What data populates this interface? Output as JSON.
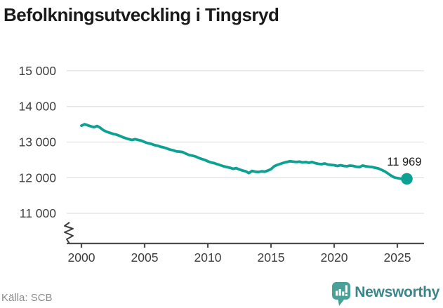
{
  "header": {
    "title": "Befolkningsutveckling i Tingsryd"
  },
  "footer": {
    "source_label": "Källa: SCB",
    "brand_name": "Newsworthy"
  },
  "colors": {
    "line": "#0da193",
    "grid": "#e3e3e3",
    "axis": "#4d4d4d",
    "tick_label": "#3d3d3d",
    "annotation": "#1a1a1a",
    "title": "#1a1a1a",
    "source_text": "#8b8b8b",
    "brand_teal": "#48a098",
    "brand_text_teal": "#3b858a"
  },
  "icons": {
    "brand_logo": "newsworthy-speech-bubble-bar-chart-icon"
  },
  "chart_data": {
    "type": "line",
    "title": "Befolkningsutveckling i Tingsryd",
    "source": "Källa: SCB",
    "grid": "horizontal",
    "legend": "none",
    "axis_break": true,
    "xlim": [
      1999,
      2026.5
    ],
    "ylim": [
      11000,
      15000
    ],
    "x_ticks": [
      2000,
      2005,
      2010,
      2015,
      2020,
      2025
    ],
    "y_tick_values": [
      15000,
      14000,
      13000,
      12000,
      11000
    ],
    "y_ticks": [
      "15 000",
      "14 000",
      "13 000",
      "12 000",
      "11 000"
    ],
    "end_label": "11 969",
    "end_value": 11969,
    "series_name": "Befolkning",
    "x": [
      2000.0,
      2000.25,
      2000.5,
      2000.75,
      2001.0,
      2001.25,
      2001.5,
      2001.75,
      2002.0,
      2002.25,
      2002.5,
      2002.75,
      2003.0,
      2003.25,
      2003.5,
      2003.75,
      2004.0,
      2004.25,
      2004.5,
      2004.75,
      2005.0,
      2005.25,
      2005.5,
      2005.75,
      2006.0,
      2006.25,
      2006.5,
      2006.75,
      2007.0,
      2007.25,
      2007.5,
      2007.75,
      2008.0,
      2008.25,
      2008.5,
      2008.75,
      2009.0,
      2009.25,
      2009.5,
      2009.75,
      2010.0,
      2010.25,
      2010.5,
      2010.75,
      2011.0,
      2011.25,
      2011.5,
      2011.75,
      2012.0,
      2012.25,
      2012.5,
      2012.75,
      2013.0,
      2013.25,
      2013.5,
      2013.75,
      2014.0,
      2014.25,
      2014.5,
      2014.75,
      2015.0,
      2015.25,
      2015.5,
      2015.75,
      2016.0,
      2016.25,
      2016.5,
      2016.75,
      2017.0,
      2017.25,
      2017.5,
      2017.75,
      2018.0,
      2018.25,
      2018.5,
      2018.75,
      2019.0,
      2019.25,
      2019.5,
      2019.75,
      2020.0,
      2020.25,
      2020.5,
      2020.75,
      2021.0,
      2021.25,
      2021.5,
      2021.75,
      2022.0,
      2022.25,
      2022.5,
      2022.75,
      2023.0,
      2023.25,
      2023.5,
      2023.75,
      2024.0,
      2024.25,
      2024.5,
      2024.75,
      2025.0,
      2025.25,
      2025.5,
      2025.75
    ],
    "values": [
      13460,
      13500,
      13470,
      13440,
      13420,
      13450,
      13400,
      13330,
      13290,
      13260,
      13230,
      13210,
      13180,
      13140,
      13110,
      13080,
      13060,
      13080,
      13060,
      13040,
      13000,
      12970,
      12950,
      12920,
      12900,
      12870,
      12850,
      12820,
      12790,
      12770,
      12740,
      12730,
      12720,
      12680,
      12640,
      12620,
      12600,
      12560,
      12530,
      12500,
      12460,
      12430,
      12410,
      12380,
      12350,
      12320,
      12300,
      12280,
      12250,
      12270,
      12230,
      12200,
      12180,
      12130,
      12190,
      12170,
      12160,
      12180,
      12170,
      12200,
      12240,
      12320,
      12360,
      12390,
      12420,
      12440,
      12460,
      12450,
      12440,
      12450,
      12430,
      12440,
      12420,
      12440,
      12410,
      12390,
      12380,
      12400,
      12370,
      12360,
      12350,
      12330,
      12350,
      12330,
      12320,
      12340,
      12330,
      12310,
      12300,
      12340,
      12320,
      12310,
      12300,
      12280,
      12260,
      12220,
      12180,
      12120,
      12060,
      12010,
      11990,
      11975,
      11970,
      11969
    ]
  }
}
